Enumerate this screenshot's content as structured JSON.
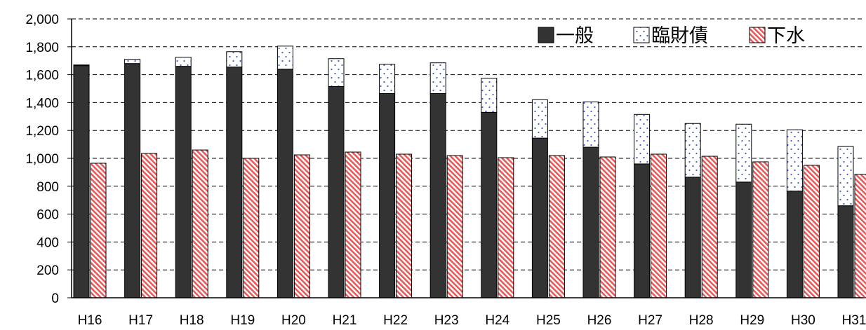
{
  "chart_data": {
    "type": "bar",
    "categories": [
      "H16",
      "H17",
      "H18",
      "H19",
      "H20",
      "H21",
      "H22",
      "H23",
      "H24",
      "H25",
      "H26",
      "H27",
      "H28",
      "H29",
      "H30",
      "H31"
    ],
    "series": [
      {
        "name": "一般",
        "stack": "left",
        "color": "#333333",
        "values": [
          1665,
          1680,
          1660,
          1655,
          1640,
          1515,
          1465,
          1465,
          1330,
          1145,
          1080,
          960,
          865,
          830,
          765,
          660
        ]
      },
      {
        "name": "臨財債",
        "stack": "left",
        "color": "#ffffff",
        "values": [
          5,
          30,
          65,
          110,
          165,
          200,
          210,
          220,
          245,
          275,
          325,
          355,
          385,
          415,
          440,
          425
        ]
      },
      {
        "name": "下水",
        "stack": "right",
        "color": "#f07070",
        "values": [
          965,
          1035,
          1060,
          1000,
          1025,
          1045,
          1030,
          1020,
          1005,
          1020,
          1010,
          1030,
          1015,
          975,
          950,
          885
        ]
      }
    ],
    "ylim": [
      0,
      2000
    ],
    "yticks": [
      0,
      200,
      400,
      600,
      800,
      1000,
      1200,
      1400,
      1600,
      1800,
      2000
    ],
    "ytick_labels": [
      "0",
      "200",
      "400",
      "600",
      "800",
      "1,000",
      "1,200",
      "1,400",
      "1,600",
      "1,800",
      "2,000"
    ],
    "grid": true,
    "legend_position": "top-right",
    "title": "",
    "xlabel": "",
    "ylabel": ""
  }
}
